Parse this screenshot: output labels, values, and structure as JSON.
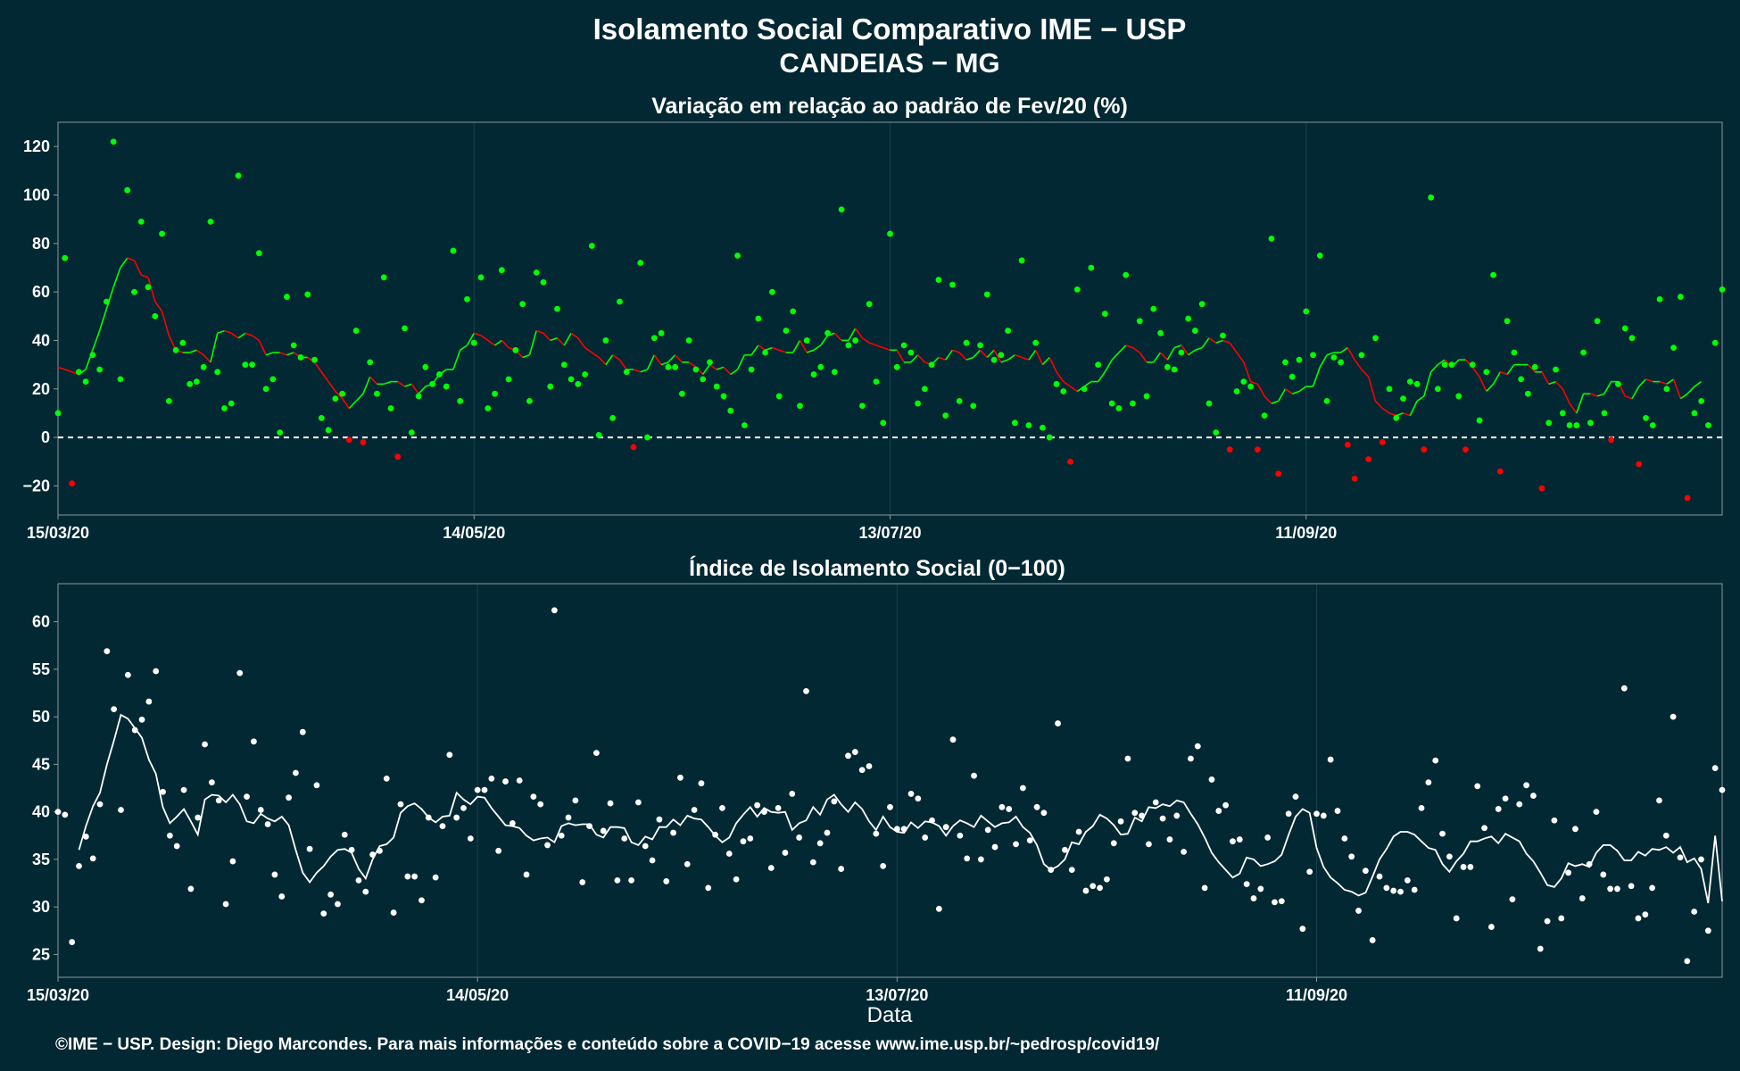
{
  "title_line1": "Isolamento Social Comparativo IME − USP",
  "title_line2": "CANDEIAS − MG",
  "x_axis_label": "Data",
  "footer": "©IME − USP. Design: Diego Marcondes. Para mais informações e conteúdo sobre a COVID−19 acesse www.ime.usp.br/~pedrosp/covid19/",
  "colors": {
    "background": "#022833",
    "panel_border": "#8a9aa0",
    "grid": "#16414c",
    "positive": "#00ff00",
    "negative": "#ff0000",
    "index_points": "#ffffff",
    "zero_line": "#ffffff"
  },
  "chart_data": [
    {
      "type": "scatter",
      "title": "Variação em relação ao padrão de Fev/20 (%)",
      "xlabel": "",
      "ylabel": "",
      "x_start": "15/03/20",
      "x_end": "08/11/20",
      "xticks": [
        "15/03/20",
        "14/05/20",
        "13/07/20",
        "11/09/20"
      ],
      "xtick_offsets_days": [
        0,
        60,
        120,
        180
      ],
      "ylim": [
        -32,
        130
      ],
      "yticks": [
        -20,
        0,
        20,
        40,
        60,
        80,
        100,
        120
      ],
      "ytick_labels": [
        "−20",
        "0",
        "20",
        "40",
        "60",
        "80",
        "100",
        "120"
      ],
      "reference_line": 0,
      "grid": true,
      "series": [
        {
          "name": "",
          "values": [
            10,
            74,
            -19,
            27,
            23,
            34,
            28,
            56,
            122,
            24,
            102,
            60,
            89,
            62,
            50,
            84,
            15,
            36,
            39,
            22,
            23,
            29,
            89,
            27,
            12,
            14,
            108,
            30,
            30,
            76,
            20,
            24,
            2,
            58,
            38,
            33,
            59,
            32,
            8,
            3,
            16,
            18,
            -1,
            44,
            -2,
            31,
            18,
            66,
            12,
            -8,
            45,
            2,
            17,
            29,
            22,
            26,
            21,
            77,
            15,
            57,
            39,
            66,
            12,
            18,
            69,
            24,
            36,
            55,
            15,
            68,
            64,
            21,
            53,
            30,
            24,
            22,
            26,
            79,
            1,
            40,
            8,
            56,
            27,
            -4,
            72,
            0,
            41,
            43,
            29,
            29,
            18,
            40,
            28,
            24,
            31,
            21,
            17,
            11,
            75,
            5,
            28,
            49,
            35,
            60,
            17,
            44,
            52,
            13,
            40,
            26,
            29,
            43,
            27,
            94,
            38,
            40,
            13,
            55,
            23,
            6,
            84,
            29,
            38,
            35,
            14,
            20,
            30,
            65,
            9,
            63,
            15,
            39,
            13,
            38,
            59,
            32,
            34,
            44,
            6,
            73,
            5,
            39,
            4,
            0,
            22,
            19,
            -10,
            61,
            20,
            70,
            30,
            51,
            14,
            12,
            67,
            14,
            48,
            17,
            53,
            43,
            29,
            28,
            35,
            49,
            44,
            55,
            14,
            2,
            42,
            -5,
            19,
            23,
            21,
            -5,
            9,
            82,
            -15,
            31,
            25,
            32,
            52,
            34,
            75,
            15,
            33,
            31,
            -3,
            -17,
            34,
            -9,
            41,
            -2,
            20,
            8,
            16,
            23,
            22,
            -5,
            99,
            20,
            30,
            30,
            17,
            -5,
            30,
            7,
            27,
            67,
            -14,
            48,
            35,
            24,
            18,
            29,
            -21,
            6,
            28,
            10,
            5,
            5,
            35,
            6,
            48,
            10,
            -1,
            22,
            45,
            41,
            -11,
            8,
            5,
            57,
            20,
            37,
            58,
            -25,
            10,
            15,
            5,
            39,
            61
          ],
          "moving_average": [
            29,
            28,
            27,
            26,
            28,
            36,
            44,
            53,
            62,
            70,
            74,
            73,
            67,
            66,
            56,
            52,
            42,
            36,
            35,
            35,
            36,
            34,
            31,
            43,
            44,
            43,
            41,
            43,
            42,
            40,
            34,
            35,
            35,
            34,
            35,
            33,
            33,
            31,
            27,
            23,
            19,
            16,
            12,
            15,
            18,
            25,
            22,
            22,
            23,
            23,
            21,
            22,
            18,
            21,
            22,
            26,
            28,
            28,
            36,
            38,
            43,
            42,
            40,
            38,
            40,
            37,
            36,
            33,
            34,
            44,
            43,
            40,
            41,
            38,
            43,
            41,
            37,
            35,
            33,
            30,
            34,
            32,
            28,
            28,
            27,
            28,
            34,
            30,
            31,
            34,
            31,
            31,
            29,
            26,
            30,
            28,
            29,
            26,
            28,
            34,
            34,
            38,
            36,
            37,
            36,
            35,
            35,
            40,
            35,
            36,
            38,
            42,
            43,
            40,
            40,
            45,
            41,
            39,
            38,
            37,
            36,
            36,
            31,
            31,
            34,
            31,
            30,
            33,
            32,
            36,
            35,
            32,
            33,
            36,
            33,
            36,
            31,
            32,
            34,
            33,
            32,
            36,
            30,
            33,
            27,
            23,
            21,
            19,
            21,
            23,
            23,
            27,
            32,
            35,
            38,
            37,
            35,
            31,
            31,
            35,
            32,
            37,
            38,
            34,
            36,
            37,
            41,
            39,
            40,
            39,
            35,
            31,
            23,
            22,
            17,
            14,
            15,
            20,
            18,
            19,
            21,
            21,
            29,
            34,
            35,
            35,
            37,
            32,
            28,
            25,
            15,
            12,
            10,
            9,
            10,
            9,
            15,
            17,
            27,
            30,
            32,
            29,
            32,
            32,
            29,
            25,
            19,
            22,
            27,
            26,
            30,
            30,
            30,
            27,
            27,
            22,
            23,
            20,
            14,
            10,
            18,
            18,
            17,
            18,
            23,
            23,
            17,
            16,
            21,
            24,
            23,
            23,
            22,
            24,
            16,
            18,
            21,
            23
          ]
        }
      ]
    },
    {
      "type": "scatter",
      "title": "Índice de Isolamento Social (0−100)",
      "xlabel": "Data",
      "ylabel": "",
      "x_start": "15/03/20",
      "x_end": "08/11/20",
      "xticks": [
        "15/03/20",
        "14/05/20",
        "13/07/20",
        "11/09/20"
      ],
      "xtick_offsets_days": [
        0,
        60,
        120,
        180
      ],
      "ylim": [
        22.6,
        64.0
      ],
      "yticks": [
        25,
        30,
        35,
        40,
        45,
        50,
        55,
        60
      ],
      "ytick_labels": [
        "25",
        "30",
        "35",
        "40",
        "45",
        "50",
        "55",
        "60"
      ],
      "grid": true,
      "series": [
        {
          "name": "",
          "values": [
            40.0,
            39.7,
            26.3,
            34.3,
            37.4,
            35.1,
            40.8,
            56.9,
            50.8,
            40.2,
            54.4,
            48.6,
            49.7,
            51.6,
            54.8,
            42.1,
            37.5,
            36.4,
            42.3,
            31.9,
            39.4,
            47.1,
            43.1,
            41.2,
            30.3,
            34.8,
            54.6,
            41.6,
            47.4,
            40.2,
            38.7,
            33.4,
            31.1,
            41.5,
            44.1,
            48.4,
            36.1,
            42.8,
            29.3,
            31.3,
            30.3,
            37.6,
            36.0,
            32.8,
            31.6,
            35.5,
            35.9,
            43.5,
            29.4,
            40.8,
            33.2,
            33.2,
            30.7,
            39.4,
            33.1,
            38.5,
            46.0,
            39.4,
            40.4,
            37.2,
            42.3,
            42.3,
            43.5,
            35.9,
            43.2,
            38.8,
            43.3,
            33.4,
            41.6,
            40.8,
            36.5,
            61.2,
            37.5,
            39.4,
            41.2,
            32.6,
            38.5,
            46.2,
            38.0,
            40.9,
            32.8,
            37.2,
            32.8,
            41.0,
            36.4,
            34.9,
            39.2,
            32.7,
            37.8,
            43.6,
            34.5,
            40.2,
            43.0,
            32.0,
            37.6,
            40.4,
            35.6,
            32.9,
            36.9,
            37.2,
            40.7,
            40.0,
            34.1,
            40.4,
            35.7,
            41.9,
            37.3,
            52.7,
            34.7,
            36.7,
            37.8,
            41.1,
            34.0,
            45.9,
            46.3,
            44.4,
            44.8,
            37.7,
            34.3,
            40.5,
            38.2,
            38.2,
            41.9,
            41.4,
            37.3,
            39.1,
            29.8,
            38.4,
            47.6,
            37.5,
            35.1,
            43.8,
            35.0,
            38.1,
            36.3,
            40.5,
            40.3,
            36.6,
            42.5,
            37.0,
            40.5,
            39.9,
            33.9,
            49.3,
            36.0,
            33.9,
            37.9,
            31.7,
            32.2,
            32.0,
            32.9,
            36.7,
            39.0,
            45.6,
            39.9,
            39.6,
            36.6,
            41.0,
            39.3,
            37.1,
            39.6,
            35.8,
            45.6,
            46.9,
            32.0,
            43.4,
            40.1,
            40.7,
            36.9,
            37.1,
            32.4,
            30.9,
            31.9,
            37.3,
            30.5,
            30.6,
            39.8,
            41.6,
            27.7,
            33.7,
            39.8,
            39.6,
            45.5,
            40.1,
            37.2,
            35.3,
            29.6,
            33.8,
            26.5,
            33.2,
            32.0,
            31.7,
            31.6,
            32.8,
            31.8,
            40.4,
            43.1,
            45.4,
            37.7,
            35.3,
            28.8,
            34.2,
            34.2,
            42.7,
            38.3,
            27.9,
            40.3,
            41.4,
            30.8,
            40.8,
            42.8,
            41.7,
            25.6,
            28.5,
            39.1,
            28.8,
            33.6,
            38.2,
            30.9,
            34.5,
            40.0,
            33.4,
            31.9,
            31.9,
            53.0,
            32.2,
            28.8,
            29.2,
            32.0,
            41.2,
            37.5,
            50.0,
            35.2,
            24.3,
            29.5,
            35.0,
            27.5,
            44.6,
            42.3
          ],
          "moving_average": [
            null,
            null,
            null,
            36.0,
            38.5,
            40.6,
            42.0,
            45.0,
            47.5,
            50.2,
            49.8,
            48.8,
            47.8,
            45.5,
            44.0,
            40.5,
            38.8,
            39.5,
            40.3,
            39.0,
            37.6,
            41.3,
            41.8,
            41.7,
            41.0,
            41.8,
            40.8,
            39.0,
            38.8,
            39.8,
            39.3,
            39.0,
            39.5,
            38.6,
            36.0,
            33.6,
            32.6,
            33.6,
            34.3,
            35.3,
            36.0,
            36.1,
            35.7,
            34.0,
            33.0,
            35.0,
            36.4,
            36.6,
            37.3,
            39.9,
            40.6,
            40.9,
            40.3,
            39.4,
            38.9,
            39.5,
            39.6,
            42.0,
            41.3,
            40.8,
            41.6,
            41.5,
            40.4,
            39.5,
            38.6,
            38.5,
            38.3,
            37.5,
            37.0,
            37.2,
            37.3,
            36.8,
            38.5,
            38.8,
            38.6,
            38.7,
            38.7,
            37.6,
            37.3,
            38.4,
            38.4,
            38.3,
            36.8,
            36.5,
            37.4,
            37.1,
            38.4,
            38.4,
            39.2,
            38.6,
            39.6,
            39.3,
            39.2,
            38.4,
            37.5,
            36.8,
            37.3,
            38.8,
            39.7,
            40.5,
            39.5,
            40.4,
            40.0,
            39.9,
            40.0,
            38.1,
            38.8,
            39.1,
            40.5,
            39.7,
            41.3,
            41.8,
            40.8,
            40.0,
            41.0,
            40.3,
            39.0,
            38.1,
            39.5,
            38.4,
            37.9,
            37.8,
            38.9,
            38.3,
            39.0,
            38.9,
            38.5,
            37.5,
            38.5,
            39.1,
            38.8,
            38.4,
            39.6,
            39.0,
            38.4,
            38.8,
            38.9,
            39.5,
            38.4,
            37.8,
            36.5,
            34.5,
            33.9,
            34.3,
            35.0,
            36.8,
            36.6,
            37.9,
            38.5,
            39.7,
            39.3,
            38.6,
            37.6,
            37.7,
            39.4,
            39.0,
            40.5,
            40.4,
            40.8,
            40.6,
            41.2,
            41.0,
            39.8,
            38.7,
            37.3,
            35.7,
            34.7,
            33.9,
            33.1,
            33.5,
            35.2,
            35.0,
            34.3,
            34.5,
            34.8,
            35.5,
            37.6,
            39.5,
            40.3,
            39.9,
            36.2,
            34.2,
            33.1,
            32.5,
            31.8,
            31.6,
            31.2,
            31.5,
            33.2,
            35.0,
            36.1,
            37.4,
            37.9,
            37.9,
            37.6,
            36.9,
            36.2,
            36.0,
            34.5,
            33.7,
            34.8,
            35.6,
            36.9,
            36.9,
            37.2,
            37.4,
            36.7,
            37.7,
            37.3,
            36.9,
            35.6,
            34.8,
            33.6,
            32.3,
            32.1,
            33.0,
            34.6,
            34.3,
            34.5,
            34.2,
            35.7,
            36.5,
            36.5,
            35.9,
            34.9,
            34.9,
            35.8,
            35.4,
            36.1,
            36.0,
            36.3,
            35.7,
            36.3,
            34.7,
            35.1,
            34.0,
            30.4,
            37.5,
            30.6
          ]
        }
      ]
    }
  ]
}
